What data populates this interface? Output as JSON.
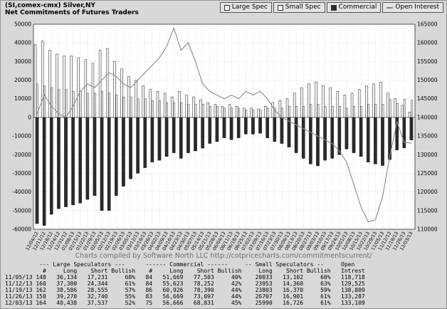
{
  "header": {
    "title_line1": "(SI,comex-cmx) Silver,NY",
    "title_line2": "Net Commitments of Futures Traders"
  },
  "legend": {
    "items": [
      {
        "label": "Large Spec",
        "icon": "light-square-swatch"
      },
      {
        "label": "Small Spec",
        "icon": "light-square-swatch"
      },
      {
        "label": "Commercial",
        "icon": "dark-square-swatch"
      },
      {
        "label": "Open Interest",
        "icon": "line-swatch"
      }
    ]
  },
  "footer": {
    "credit": "Charts compiled by Software North LLC  http://cotpricecharts.com/commitmentscurrent/"
  },
  "colors": {
    "page_bg": "#d8d8d8",
    "plot_bg": "#ffffff",
    "grid": "#b8b8b8",
    "large_spec_bar": "#f9f9f9",
    "small_spec_bar": "#efefef",
    "commercial_bar": "#2a2a2a",
    "open_interest_line": "#8a8a8a",
    "credit_text": "#6e6e6e"
  },
  "chart_data": {
    "type": "bar",
    "title": "Net Commitments of Futures Traders",
    "symbol": "(SI,comex-cmx) Silver,NY",
    "legend_position": "top-right",
    "grid": true,
    "left_axis": {
      "min": -60000,
      "max": 50000,
      "step": 10000
    },
    "right_axis": {
      "min": 110000,
      "max": 165000,
      "step": 5000
    },
    "categories": [
      "12/04/12",
      "12/11/12",
      "12/18/12",
      "12/24/12",
      "12/31/12",
      "01/08/13",
      "01/15/13",
      "01/22/13",
      "01/29/13",
      "02/05/13",
      "02/12/13",
      "02/19/13",
      "02/26/13",
      "03/05/13",
      "03/12/13",
      "03/19/13",
      "03/26/13",
      "04/02/13",
      "04/09/13",
      "04/16/13",
      "04/23/13",
      "04/30/13",
      "05/07/13",
      "05/14/13",
      "05/21/13",
      "05/28/13",
      "06/04/13",
      "06/11/13",
      "06/18/13",
      "06/25/13",
      "07/02/13",
      "07/09/13",
      "07/16/13",
      "07/23/13",
      "07/30/13",
      "08/06/13",
      "08/13/13",
      "08/20/13",
      "08/27/13",
      "09/03/13",
      "09/10/13",
      "09/17/13",
      "09/24/13",
      "10/01/13",
      "10/08/13",
      "10/15/13",
      "10/22/13",
      "10/29/13",
      "11/05/13",
      "11/12/13",
      "11/19/13",
      "11/26/13",
      "12/03/13"
    ],
    "series": [
      {
        "name": "Large Spec",
        "type": "bar",
        "axis": "left",
        "values": [
          39000,
          41000,
          36000,
          34000,
          33000,
          33000,
          32000,
          31000,
          29000,
          36000,
          37000,
          30000,
          26000,
          22000,
          20000,
          17000,
          15000,
          14000,
          13000,
          11000,
          14000,
          12000,
          11000,
          9500,
          8000,
          7000,
          6000,
          7000,
          6000,
          5000,
          5000,
          4500,
          6000,
          8000,
          9000,
          10000,
          13000,
          16000,
          18000,
          19000,
          17000,
          16000,
          14000,
          12000,
          13000,
          15000,
          17000,
          18000,
          18903,
          13036,
          10031,
          6530,
          2901
        ]
      },
      {
        "name": "Small Spec",
        "type": "bar",
        "axis": "left",
        "values": [
          18000,
          17000,
          16000,
          15000,
          15000,
          14000,
          14000,
          13000,
          13000,
          14000,
          13000,
          12000,
          11000,
          11000,
          10000,
          10000,
          9000,
          9000,
          8000,
          8000,
          8000,
          7000,
          7000,
          7000,
          6000,
          6000,
          5000,
          5000,
          5000,
          4000,
          4000,
          4000,
          5000,
          5000,
          5000,
          6000,
          6000,
          6000,
          7000,
          7000,
          6000,
          6000,
          6000,
          5000,
          6000,
          6000,
          7000,
          7000,
          6931,
          9593,
          7433,
          9806,
          9264
        ]
      },
      {
        "name": "Commercial",
        "type": "bar",
        "axis": "left",
        "values": [
          -57000,
          -58000,
          -52000,
          -49000,
          -48000,
          -47000,
          -46000,
          -44000,
          -42000,
          -50000,
          -50000,
          -42000,
          -37000,
          -33000,
          -30000,
          -27000,
          -24000,
          -23000,
          -21000,
          -19000,
          -22000,
          -19000,
          -18000,
          -16500,
          -14000,
          -13000,
          -11000,
          -12000,
          -11000,
          -9000,
          -9000,
          -8500,
          -11000,
          -13000,
          -14000,
          -16000,
          -19000,
          -22000,
          -25000,
          -26000,
          -23000,
          -22000,
          -20000,
          -17000,
          -19000,
          -21000,
          -24000,
          -25000,
          -25834,
          -22629,
          -17464,
          -16428,
          -12165
        ]
      },
      {
        "name": "Open Interest",
        "type": "line",
        "axis": "right",
        "values": [
          141000,
          146000,
          143000,
          141000,
          140000,
          143000,
          147000,
          149000,
          148000,
          150000,
          152000,
          151000,
          149000,
          148000,
          150000,
          152000,
          154000,
          156000,
          159000,
          164000,
          158000,
          160000,
          155000,
          149000,
          147000,
          146000,
          145000,
          146000,
          145000,
          147000,
          146000,
          147000,
          145000,
          142000,
          140000,
          139000,
          138000,
          137000,
          136000,
          135000,
          134000,
          133000,
          131000,
          128000,
          122000,
          116000,
          112000,
          112500,
          118718,
          129525,
          138809,
          133287,
          133109
        ]
      }
    ]
  },
  "table": {
    "group_headers": [
      "--- Large Speculators ---",
      "------ Commercial ------",
      "-- Small Speculators --",
      "Open"
    ],
    "column_headers": [
      "#",
      "Long",
      "Short",
      "Bullish",
      "#",
      "Long",
      "Short",
      "Bullish",
      "Long",
      "Short",
      "Bullish",
      "Intrest"
    ],
    "rows": [
      [
        "11/05/13",
        "148",
        "36,134",
        "17,231",
        "68%",
        "84",
        "51,669",
        "77,503",
        "40%",
        "20033",
        "13,102",
        "60%",
        "118,718"
      ],
      [
        "11/12/13",
        "160",
        "37,380",
        "24,344",
        "61%",
        "84",
        "55,623",
        "78,252",
        "42%",
        "23953",
        "14,360",
        "63%",
        "129,525"
      ],
      [
        "11/19/13",
        "162",
        "38,586",
        "28,555",
        "57%",
        "86",
        "60,926",
        "78,390",
        "44%",
        "23803",
        "16,370",
        "59%",
        "138,809"
      ],
      [
        "11/26/13",
        "158",
        "39,270",
        "32,740",
        "55%",
        "83",
        "56,669",
        "73,097",
        "44%",
        "26707",
        "16,901",
        "61%",
        "133,287"
      ],
      [
        "12/03/13",
        "164",
        "40,438",
        "37,537",
        "52%",
        "75",
        "56,666",
        "68,831",
        "45%",
        "25990",
        "16,726",
        "61%",
        "133,109"
      ]
    ]
  }
}
